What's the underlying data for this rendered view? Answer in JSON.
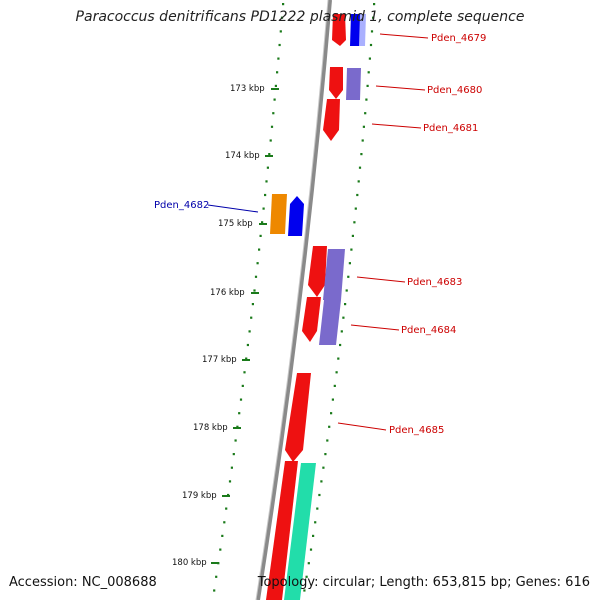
{
  "header": {
    "title": "Paracoccus denitrificans PD1222 plasmid 1, complete sequence"
  },
  "footer": {
    "accession": "Accession: NC_008688",
    "stats": "Topology: circular; Length: 653,815 bp; Genes: 616"
  },
  "scale_ticks": [
    "173 kbp",
    "174 kbp",
    "175 kbp",
    "176 kbp",
    "177 kbp",
    "178 kbp",
    "179 kbp",
    "180 kbp"
  ],
  "genes": [
    {
      "label": "Pden_4679",
      "color": "#cc0000"
    },
    {
      "label": "Pden_4680",
      "color": "#cc0000"
    },
    {
      "label": "Pden_4681",
      "color": "#cc0000"
    },
    {
      "label": "Pden_4682",
      "color": "#0000aa"
    },
    {
      "label": "Pden_4683",
      "color": "#cc0000"
    },
    {
      "label": "Pden_4684",
      "color": "#cc0000"
    },
    {
      "label": "Pden_4685",
      "color": "#cc0000"
    }
  ],
  "colors": {
    "backbone": "#8a8a8a",
    "dots": "#1a7a1a",
    "red_feature": "#ee1111",
    "blue_feature": "#0000ee",
    "purple_feature": "#7a6acc",
    "orange_feature": "#ee8800",
    "green_feature": "#22ddaa"
  }
}
